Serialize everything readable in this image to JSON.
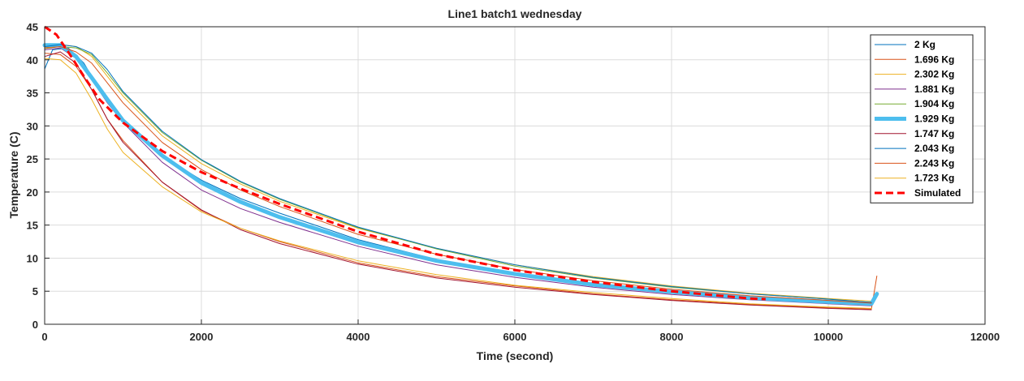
{
  "chart_data": {
    "type": "line",
    "title": "Line1 batch1 wednesday",
    "xlabel": "Time (second)",
    "ylabel": "Temperature (C)",
    "xlim": [
      0,
      12000
    ],
    "ylim": [
      0,
      45
    ],
    "xticks": [
      0,
      2000,
      4000,
      6000,
      8000,
      10000,
      12000
    ],
    "yticks": [
      0,
      5,
      10,
      15,
      20,
      25,
      30,
      35,
      40,
      45
    ],
    "grid": true,
    "legend_position": "top-right",
    "series": [
      {
        "name": "2 Kg",
        "color": "#0072bd",
        "width": 1,
        "dash": "",
        "points": [
          [
            0,
            38.6
          ],
          [
            100,
            41.5
          ],
          [
            300,
            41.8
          ],
          [
            500,
            39.5
          ],
          [
            700,
            35.5
          ],
          [
            1000,
            30.8
          ],
          [
            1500,
            25.5
          ],
          [
            2000,
            21.8
          ],
          [
            2500,
            19.0
          ],
          [
            3000,
            16.8
          ],
          [
            4000,
            12.8
          ],
          [
            5000,
            9.8
          ],
          [
            6000,
            7.5
          ],
          [
            7000,
            5.8
          ],
          [
            8000,
            4.8
          ],
          [
            9000,
            3.9
          ],
          [
            10000,
            3.3
          ],
          [
            10550,
            3.0
          ]
        ]
      },
      {
        "name": "1.696 Kg",
        "color": "#d95319",
        "width": 1,
        "dash": "",
        "points": [
          [
            0,
            41.0
          ],
          [
            200,
            40.8
          ],
          [
            400,
            39.0
          ],
          [
            600,
            35.5
          ],
          [
            800,
            31.0
          ],
          [
            1000,
            27.8
          ],
          [
            1500,
            21.5
          ],
          [
            2000,
            17.2
          ],
          [
            2500,
            14.5
          ],
          [
            3000,
            12.5
          ],
          [
            4000,
            9.3
          ],
          [
            5000,
            7.2
          ],
          [
            6000,
            5.8
          ],
          [
            7000,
            4.6
          ],
          [
            8000,
            3.7
          ],
          [
            9000,
            3.0
          ],
          [
            10000,
            2.5
          ],
          [
            10550,
            2.3
          ],
          [
            10620,
            7.3
          ]
        ]
      },
      {
        "name": "2.302 Kg",
        "color": "#edb120",
        "width": 1,
        "dash": "",
        "points": [
          [
            0,
            41.8
          ],
          [
            200,
            42.3
          ],
          [
            400,
            42.0
          ],
          [
            600,
            40.5
          ],
          [
            800,
            37.5
          ],
          [
            1000,
            34.5
          ],
          [
            1500,
            28.5
          ],
          [
            2000,
            24.3
          ],
          [
            2500,
            21.2
          ],
          [
            3000,
            18.6
          ],
          [
            4000,
            14.5
          ],
          [
            5000,
            11.5
          ],
          [
            6000,
            9.0
          ],
          [
            7000,
            7.2
          ],
          [
            8000,
            5.8
          ],
          [
            9000,
            4.7
          ],
          [
            10000,
            3.9
          ],
          [
            10550,
            3.5
          ]
        ]
      },
      {
        "name": "1.881 Kg",
        "color": "#7e2f8e",
        "width": 1,
        "dash": "",
        "points": [
          [
            0,
            41.5
          ],
          [
            200,
            41.8
          ],
          [
            400,
            40.2
          ],
          [
            600,
            37.0
          ],
          [
            800,
            33.5
          ],
          [
            1000,
            30.5
          ],
          [
            1500,
            24.5
          ],
          [
            2000,
            20.3
          ],
          [
            2500,
            17.5
          ],
          [
            3000,
            15.4
          ],
          [
            4000,
            11.8
          ],
          [
            5000,
            9.0
          ],
          [
            6000,
            7.1
          ],
          [
            7000,
            5.6
          ],
          [
            8000,
            4.5
          ],
          [
            9000,
            3.7
          ],
          [
            10000,
            3.1
          ],
          [
            10550,
            2.8
          ]
        ]
      },
      {
        "name": "1.904 Kg",
        "color": "#77ac30",
        "width": 1,
        "dash": "",
        "points": [
          [
            0,
            41.7
          ],
          [
            200,
            42.0
          ],
          [
            400,
            41.8
          ],
          [
            600,
            40.8
          ],
          [
            800,
            38.0
          ],
          [
            1000,
            35.0
          ],
          [
            1500,
            29.0
          ],
          [
            2000,
            24.8
          ],
          [
            2500,
            21.5
          ],
          [
            3000,
            18.9
          ],
          [
            4000,
            14.6
          ],
          [
            5000,
            11.4
          ],
          [
            6000,
            8.8
          ],
          [
            7000,
            7.0
          ],
          [
            8000,
            5.6
          ],
          [
            9000,
            4.6
          ],
          [
            10000,
            3.8
          ],
          [
            10550,
            3.3
          ]
        ]
      },
      {
        "name": "1.929 Kg",
        "color": "#4dbeee",
        "width": 5,
        "dash": "",
        "points": [
          [
            0,
            42.2
          ],
          [
            200,
            42.2
          ],
          [
            400,
            40.5
          ],
          [
            600,
            37.3
          ],
          [
            800,
            34.0
          ],
          [
            1000,
            30.8
          ],
          [
            1500,
            25.5
          ],
          [
            2000,
            21.4
          ],
          [
            2500,
            18.5
          ],
          [
            3000,
            16.2
          ],
          [
            4000,
            12.4
          ],
          [
            5000,
            9.6
          ],
          [
            6000,
            7.6
          ],
          [
            7000,
            6.0
          ],
          [
            8000,
            4.9
          ],
          [
            9000,
            4.0
          ],
          [
            10000,
            3.4
          ],
          [
            10550,
            3.1
          ],
          [
            10620,
            4.6
          ]
        ]
      },
      {
        "name": "1.747 Kg",
        "color": "#a2142f",
        "width": 1,
        "dash": "",
        "points": [
          [
            0,
            40.5
          ],
          [
            200,
            41.2
          ],
          [
            400,
            39.5
          ],
          [
            600,
            35.5
          ],
          [
            800,
            31.0
          ],
          [
            1000,
            27.5
          ],
          [
            1500,
            21.5
          ],
          [
            2000,
            17.3
          ],
          [
            2500,
            14.3
          ],
          [
            3000,
            12.2
          ],
          [
            4000,
            9.1
          ],
          [
            5000,
            7.0
          ],
          [
            6000,
            5.6
          ],
          [
            7000,
            4.5
          ],
          [
            8000,
            3.6
          ],
          [
            9000,
            2.9
          ],
          [
            10000,
            2.4
          ],
          [
            10550,
            2.2
          ]
        ]
      },
      {
        "name": "2.043 Kg",
        "color": "#0072bd",
        "width": 1,
        "dash": "",
        "points": [
          [
            0,
            42.0
          ],
          [
            200,
            42.3
          ],
          [
            400,
            42.0
          ],
          [
            600,
            41.0
          ],
          [
            800,
            38.5
          ],
          [
            1000,
            35.2
          ],
          [
            1500,
            29.2
          ],
          [
            2000,
            24.9
          ],
          [
            2500,
            21.6
          ],
          [
            3000,
            19.0
          ],
          [
            4000,
            14.7
          ],
          [
            5000,
            11.5
          ],
          [
            6000,
            9.0
          ],
          [
            7000,
            7.1
          ],
          [
            8000,
            5.7
          ],
          [
            9000,
            4.6
          ],
          [
            10000,
            3.8
          ],
          [
            10550,
            3.3
          ]
        ]
      },
      {
        "name": "2.243 Kg",
        "color": "#d95319",
        "width": 1,
        "dash": "",
        "points": [
          [
            0,
            41.8
          ],
          [
            200,
            42.0
          ],
          [
            400,
            41.2
          ],
          [
            600,
            39.5
          ],
          [
            800,
            36.5
          ],
          [
            1000,
            33.5
          ],
          [
            1500,
            27.5
          ],
          [
            2000,
            23.4
          ],
          [
            2500,
            20.3
          ],
          [
            3000,
            17.8
          ],
          [
            4000,
            13.6
          ],
          [
            5000,
            10.6
          ],
          [
            6000,
            8.3
          ],
          [
            7000,
            6.6
          ],
          [
            8000,
            5.3
          ],
          [
            9000,
            4.3
          ],
          [
            10000,
            3.6
          ],
          [
            10550,
            3.2
          ]
        ]
      },
      {
        "name": "1.723 Kg",
        "color": "#edb120",
        "width": 1,
        "dash": "",
        "points": [
          [
            0,
            40.2
          ],
          [
            200,
            40.0
          ],
          [
            400,
            38.0
          ],
          [
            600,
            34.0
          ],
          [
            800,
            29.5
          ],
          [
            1000,
            26.0
          ],
          [
            1500,
            20.8
          ],
          [
            2000,
            17.0
          ],
          [
            2500,
            14.5
          ],
          [
            3000,
            12.6
          ],
          [
            4000,
            9.6
          ],
          [
            5000,
            7.5
          ],
          [
            6000,
            5.9
          ],
          [
            7000,
            4.8
          ],
          [
            8000,
            3.9
          ],
          [
            9000,
            3.1
          ],
          [
            10000,
            2.6
          ],
          [
            10550,
            2.4
          ]
        ]
      },
      {
        "name": "Simulated",
        "color": "#ff0000",
        "width": 3,
        "dash": "9,5",
        "points": [
          [
            0,
            45.0
          ],
          [
            150,
            43.8
          ],
          [
            300,
            41.2
          ],
          [
            500,
            37.5
          ],
          [
            700,
            34.0
          ],
          [
            1000,
            30.5
          ],
          [
            1500,
            26.2
          ],
          [
            2000,
            23.0
          ],
          [
            2500,
            20.5
          ],
          [
            3000,
            18.2
          ],
          [
            4000,
            14.0
          ],
          [
            5000,
            10.6
          ],
          [
            6000,
            8.2
          ],
          [
            7000,
            6.4
          ],
          [
            8000,
            5.0
          ],
          [
            9000,
            3.9
          ],
          [
            9200,
            3.8
          ]
        ]
      }
    ]
  }
}
